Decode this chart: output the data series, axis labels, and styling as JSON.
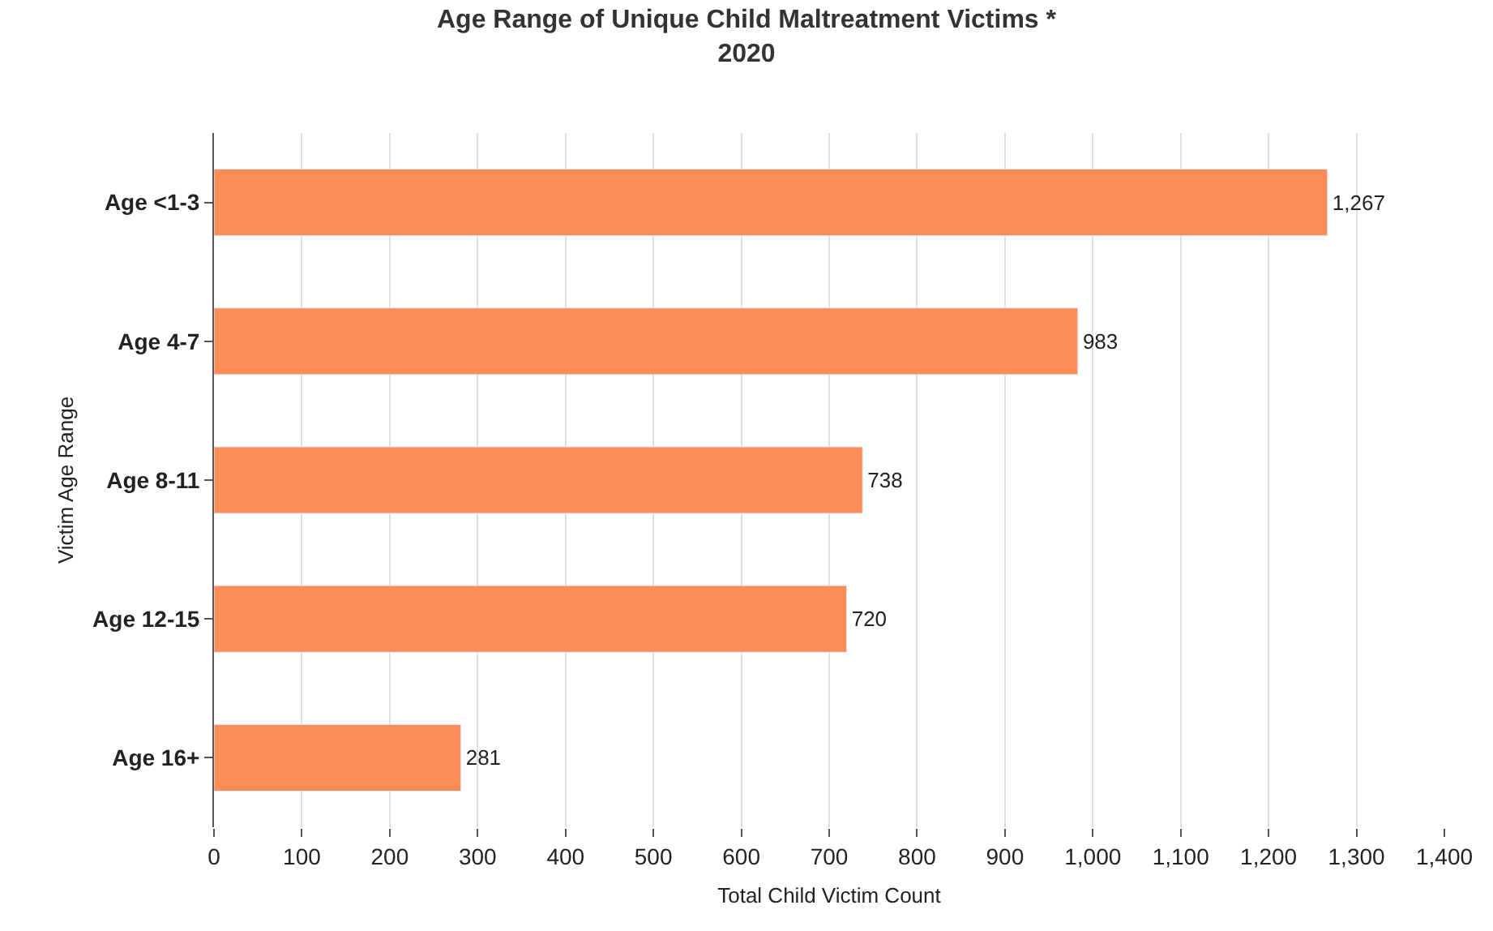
{
  "chart_data": {
    "type": "bar",
    "orientation": "horizontal",
    "title": "Age Range of Unique Child Maltreatment Victims *\n2020",
    "xlabel": "Total Child Victim Count",
    "ylabel": "Victim Age Range",
    "categories": [
      "Age <1-3",
      "Age 4-7",
      "Age 8-11",
      "Age 12-15",
      "Age 16+"
    ],
    "values": [
      1267,
      983,
      738,
      720,
      281
    ],
    "color": "#fc8d59",
    "value_labels": [
      "1,267",
      "983",
      "738",
      "720",
      "281"
    ],
    "xlim": [
      0,
      1400
    ],
    "xticks": [
      0,
      100,
      200,
      300,
      400,
      500,
      600,
      700,
      800,
      900,
      {
        "value": 1000,
        "label": "1,000"
      },
      {
        "value": 1100,
        "label": "1,100"
      },
      {
        "value": 1200,
        "label": "1,200"
      },
      {
        "value": 1300,
        "label": "1,300"
      },
      {
        "value": 1400,
        "label": "1,400"
      }
    ],
    "grid": "x",
    "legend": false
  }
}
